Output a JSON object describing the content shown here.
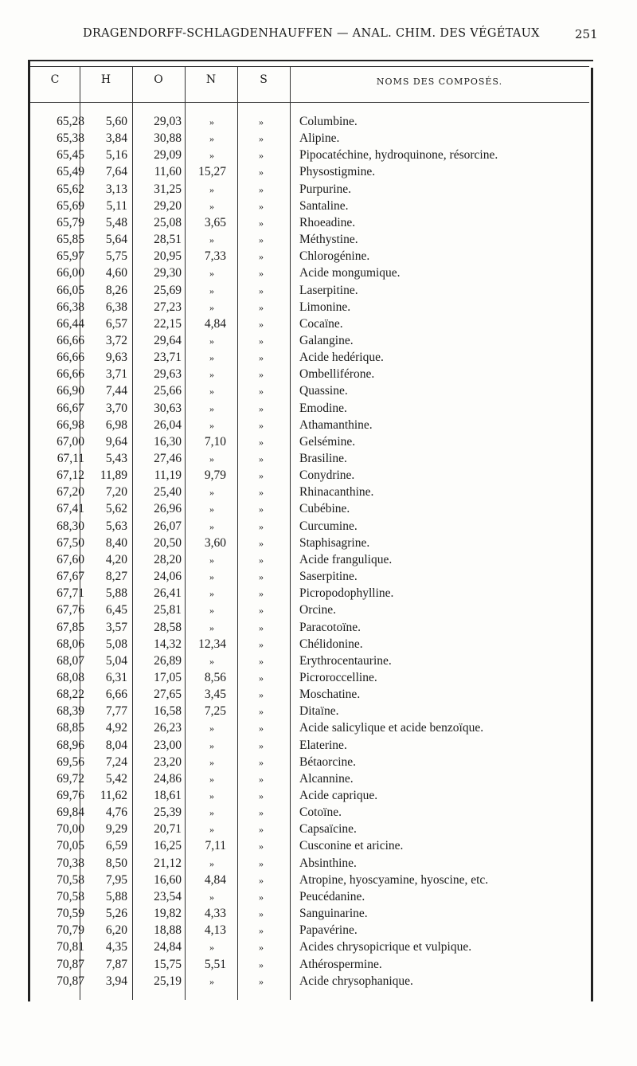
{
  "header": {
    "running_title": "DRAGENDORFF-SCHLAGDENHAUFFEN — ANAL. CHIM. DES VÉGÉTAUX",
    "page_number": "251"
  },
  "table": {
    "columns": [
      "C",
      "H",
      "O",
      "N",
      "S",
      "NOMS DES COMPOSÉS."
    ],
    "rows": [
      [
        "65,28",
        "5,60",
        "29,03",
        "»",
        "»",
        "Columbine."
      ],
      [
        "65,38",
        "3,84",
        "30,88",
        "»",
        "»",
        "Alipine."
      ],
      [
        "65,45",
        "5,16",
        "29,09",
        "»",
        "»",
        "Pipocatéchine, hydroquinone, résorcine."
      ],
      [
        "65,49",
        "7,64",
        "11,60",
        "15,27",
        "»",
        "Physostigmine."
      ],
      [
        "65,62",
        "3,13",
        "31,25",
        "»",
        "»",
        "Purpurine."
      ],
      [
        "65,69",
        "5,11",
        "29,20",
        "»",
        "»",
        "Santaline."
      ],
      [
        "65,79",
        "5,48",
        "25,08",
        "3,65",
        "»",
        "Rhoeadine."
      ],
      [
        "65,85",
        "5,64",
        "28,51",
        "»",
        "»",
        "Méthystine."
      ],
      [
        "65,97",
        "5,75",
        "20,95",
        "7,33",
        "»",
        "Chlorogénine."
      ],
      [
        "66,00",
        "4,60",
        "29,30",
        "»",
        "»",
        "Acide mongumique."
      ],
      [
        "66,05",
        "8,26",
        "25,69",
        "»",
        "»",
        "Laserpitine."
      ],
      [
        "66,38",
        "6,38",
        "27,23",
        "»",
        "»",
        "Limonine."
      ],
      [
        "66,44",
        "6,57",
        "22,15",
        "4,84",
        "»",
        "Cocaïne."
      ],
      [
        "66,66",
        "3,72",
        "29,64",
        "»",
        "»",
        "Galangine."
      ],
      [
        "66,66",
        "9,63",
        "23,71",
        "»",
        "»",
        "Acide hedérique."
      ],
      [
        "66,66",
        "3,71",
        "29,63",
        "»",
        "»",
        "Ombelliférone."
      ],
      [
        "66,90",
        "7,44",
        "25,66",
        "»",
        "»",
        "Quassine."
      ],
      [
        "66,67",
        "3,70",
        "30,63",
        "»",
        "»",
        "Emodine."
      ],
      [
        "66,98",
        "6,98",
        "26,04",
        "»",
        "»",
        "Athamanthine."
      ],
      [
        "67,00",
        "9,64",
        "16,30",
        "7,10",
        "»",
        "Gelsémine."
      ],
      [
        "67,11",
        "5,43",
        "27,46",
        "»",
        "»",
        "Brasiline."
      ],
      [
        "67,12",
        "11,89",
        "11,19",
        "9,79",
        "»",
        "Conydrine."
      ],
      [
        "67,20",
        "7,20",
        "25,40",
        "»",
        "»",
        "Rhinacanthine."
      ],
      [
        "67,41",
        "5,62",
        "26,96",
        "»",
        "»",
        "Cubébine."
      ],
      [
        "68,30",
        "5,63",
        "26,07",
        "»",
        "»",
        "Curcumine."
      ],
      [
        "67,50",
        "8,40",
        "20,50",
        "3,60",
        "»",
        "Staphisagrine."
      ],
      [
        "67,60",
        "4,20",
        "28,20",
        "»",
        "»",
        "Acide frangulique."
      ],
      [
        "67,67",
        "8,27",
        "24,06",
        "»",
        "»",
        "Saserpitine."
      ],
      [
        "67,71",
        "5,88",
        "26,41",
        "»",
        "»",
        "Picropodophylline."
      ],
      [
        "67,76",
        "6,45",
        "25,81",
        "»",
        "»",
        "Orcine."
      ],
      [
        "67,85",
        "3,57",
        "28,58",
        "»",
        "»",
        "Paracotoïne."
      ],
      [
        "68,06",
        "5,08",
        "14,32",
        "12,34",
        "»",
        "Chélidonine."
      ],
      [
        "68,07",
        "5,04",
        "26,89",
        "»",
        "»",
        "Erythrocentaurine."
      ],
      [
        "68,08",
        "6,31",
        "17,05",
        "8,56",
        "»",
        "Picroroccelline."
      ],
      [
        "68,22",
        "6,66",
        "27,65",
        "3,45",
        "»",
        "Moschatine."
      ],
      [
        "68,39",
        "7,77",
        "16,58",
        "7,25",
        "»",
        "Ditaïne."
      ],
      [
        "68,85",
        "4,92",
        "26,23",
        "»",
        "»",
        "Acide salicylique et acide benzoïque."
      ],
      [
        "68,96",
        "8,04",
        "23,00",
        "»",
        "»",
        "Elaterine."
      ],
      [
        "69,56",
        "7,24",
        "23,20",
        "»",
        "»",
        "Bétaorcine."
      ],
      [
        "69,72",
        "5,42",
        "24,86",
        "»",
        "»",
        "Alcannine."
      ],
      [
        "69,76",
        "11,62",
        "18,61",
        "»",
        "»",
        "Acide caprique."
      ],
      [
        "69,84",
        "4,76",
        "25,39",
        "»",
        "»",
        "Cotoïne."
      ],
      [
        "70,00",
        "9,29",
        "20,71",
        "»",
        "»",
        "Capsaïcine."
      ],
      [
        "70,05",
        "6,59",
        "16,25",
        "7,11",
        "»",
        "Cusconine et aricine."
      ],
      [
        "70,38",
        "8,50",
        "21,12",
        "»",
        "»",
        "Absinthine."
      ],
      [
        "70,58",
        "7,95",
        "16,60",
        "4,84",
        "»",
        "Atropine, hyoscyamine, hyoscine, etc."
      ],
      [
        "70,58",
        "5,88",
        "23,54",
        "»",
        "»",
        "Peucédanine."
      ],
      [
        "70,59",
        "5,26",
        "19,82",
        "4,33",
        "»",
        "Sanguinarine."
      ],
      [
        "70,79",
        "6,20",
        "18,88",
        "4,13",
        "»",
        "Papavérine."
      ],
      [
        "70,81",
        "4,35",
        "24,84",
        "»",
        "»",
        "Acides chrysopicrique et vulpique."
      ],
      [
        "70,87",
        "7,87",
        "15,75",
        "5,51",
        "»",
        "Athérospermine."
      ],
      [
        "70,87",
        "3,94",
        "25,19",
        "»",
        "»",
        "Acide chrysophanique."
      ]
    ]
  }
}
